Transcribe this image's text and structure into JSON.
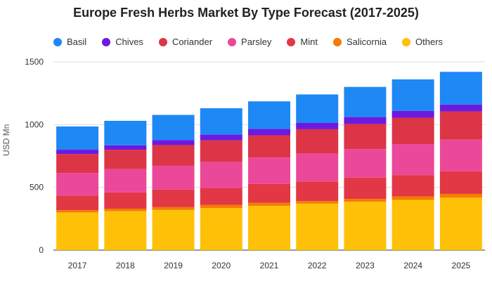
{
  "chart_data": {
    "type": "bar",
    "stacked": true,
    "title": "Europe Fresh Herbs Market By Type Forecast (2017-2025)",
    "ylabel": "USD Mn",
    "xlabel": "",
    "ylim": [
      0,
      1500
    ],
    "yticks": [
      0,
      500,
      1000,
      1500
    ],
    "grid": true,
    "legend_position": "top",
    "categories": [
      "2017",
      "2018",
      "2019",
      "2020",
      "2021",
      "2022",
      "2023",
      "2024",
      "2025"
    ],
    "series": [
      {
        "name": "Others",
        "color": "#FFC107",
        "values": [
          300,
          310,
          320,
          335,
          352,
          370,
          385,
          400,
          418
        ]
      },
      {
        "name": "Salicornia",
        "color": "#F57C00",
        "values": [
          18,
          20,
          22,
          25,
          25,
          20,
          23,
          28,
          30
        ]
      },
      {
        "name": "Mint",
        "color": "#E23744",
        "values": [
          117,
          130,
          140,
          135,
          150,
          157,
          170,
          170,
          180
        ]
      },
      {
        "name": "Parsley",
        "color": "#EC4899",
        "values": [
          180,
          185,
          190,
          208,
          211,
          223,
          227,
          247,
          252
        ]
      },
      {
        "name": "Coriander",
        "color": "#DC3545",
        "values": [
          150,
          155,
          165,
          172,
          177,
          193,
          200,
          210,
          225
        ]
      },
      {
        "name": "Chives",
        "color": "#6C1AE0",
        "values": [
          35,
          35,
          40,
          45,
          50,
          50,
          55,
          55,
          55
        ]
      },
      {
        "name": "Basil",
        "color": "#1E88F5",
        "values": [
          185,
          195,
          200,
          210,
          220,
          227,
          240,
          250,
          260
        ]
      }
    ]
  },
  "legend": {
    "items": [
      {
        "label": "Basil",
        "color": "#1E88F5"
      },
      {
        "label": "Chives",
        "color": "#6C1AE0"
      },
      {
        "label": "Coriander",
        "color": "#DC3545"
      },
      {
        "label": "Parsley",
        "color": "#EC4899"
      },
      {
        "label": "Mint",
        "color": "#E23744"
      },
      {
        "label": "Salicornia",
        "color": "#F57C00"
      },
      {
        "label": "Others",
        "color": "#FFC107"
      }
    ]
  }
}
